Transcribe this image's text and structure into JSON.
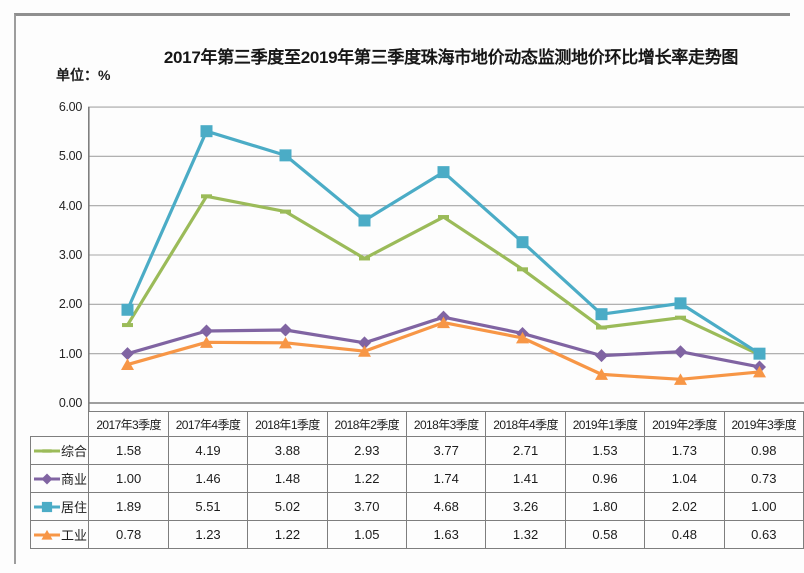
{
  "chart_data": {
    "type": "line",
    "title": "2017年第三季度至2019年第三季度珠海市地价动态监测地价环比增长率走势图",
    "unit_label": "单位：%",
    "categories": [
      "2017年3季度",
      "2017年4季度",
      "2018年1季度",
      "2018年2季度",
      "2018年3季度",
      "2018年4季度",
      "2019年1季度",
      "2019年2季度",
      "2019年3季度"
    ],
    "series": [
      {
        "name": "综合",
        "color": "#9BBB59",
        "marker": "dash",
        "values": [
          1.58,
          4.19,
          3.88,
          2.93,
          3.77,
          2.71,
          1.53,
          1.73,
          0.98
        ]
      },
      {
        "name": "商业",
        "color": "#8064A2",
        "marker": "diamond",
        "values": [
          1.0,
          1.46,
          1.48,
          1.22,
          1.74,
          1.41,
          0.96,
          1.04,
          0.73
        ]
      },
      {
        "name": "居住",
        "color": "#4BACC6",
        "marker": "square",
        "values": [
          1.89,
          5.51,
          5.02,
          3.7,
          4.68,
          3.26,
          1.8,
          2.02,
          1.0
        ]
      },
      {
        "name": "工业",
        "color": "#F79646",
        "marker": "triangle",
        "values": [
          0.78,
          1.23,
          1.22,
          1.05,
          1.63,
          1.32,
          0.58,
          0.48,
          0.63
        ]
      }
    ],
    "ylim": [
      0,
      6
    ],
    "ytick_step": 1,
    "ytick_labels": [
      "6.00",
      "5.00",
      "4.00",
      "3.00",
      "2.00",
      "1.00",
      "0.00"
    ],
    "grid": true,
    "legend_position": "table-left",
    "value_format": "0.00"
  },
  "colors": {
    "grid": "#A6A6A6",
    "axis": "#7F7F7F",
    "frame": "#8F8F8F",
    "table_border": "#7E7E7E",
    "paper": "#FDFDFD",
    "text": "#1F1F1F"
  }
}
